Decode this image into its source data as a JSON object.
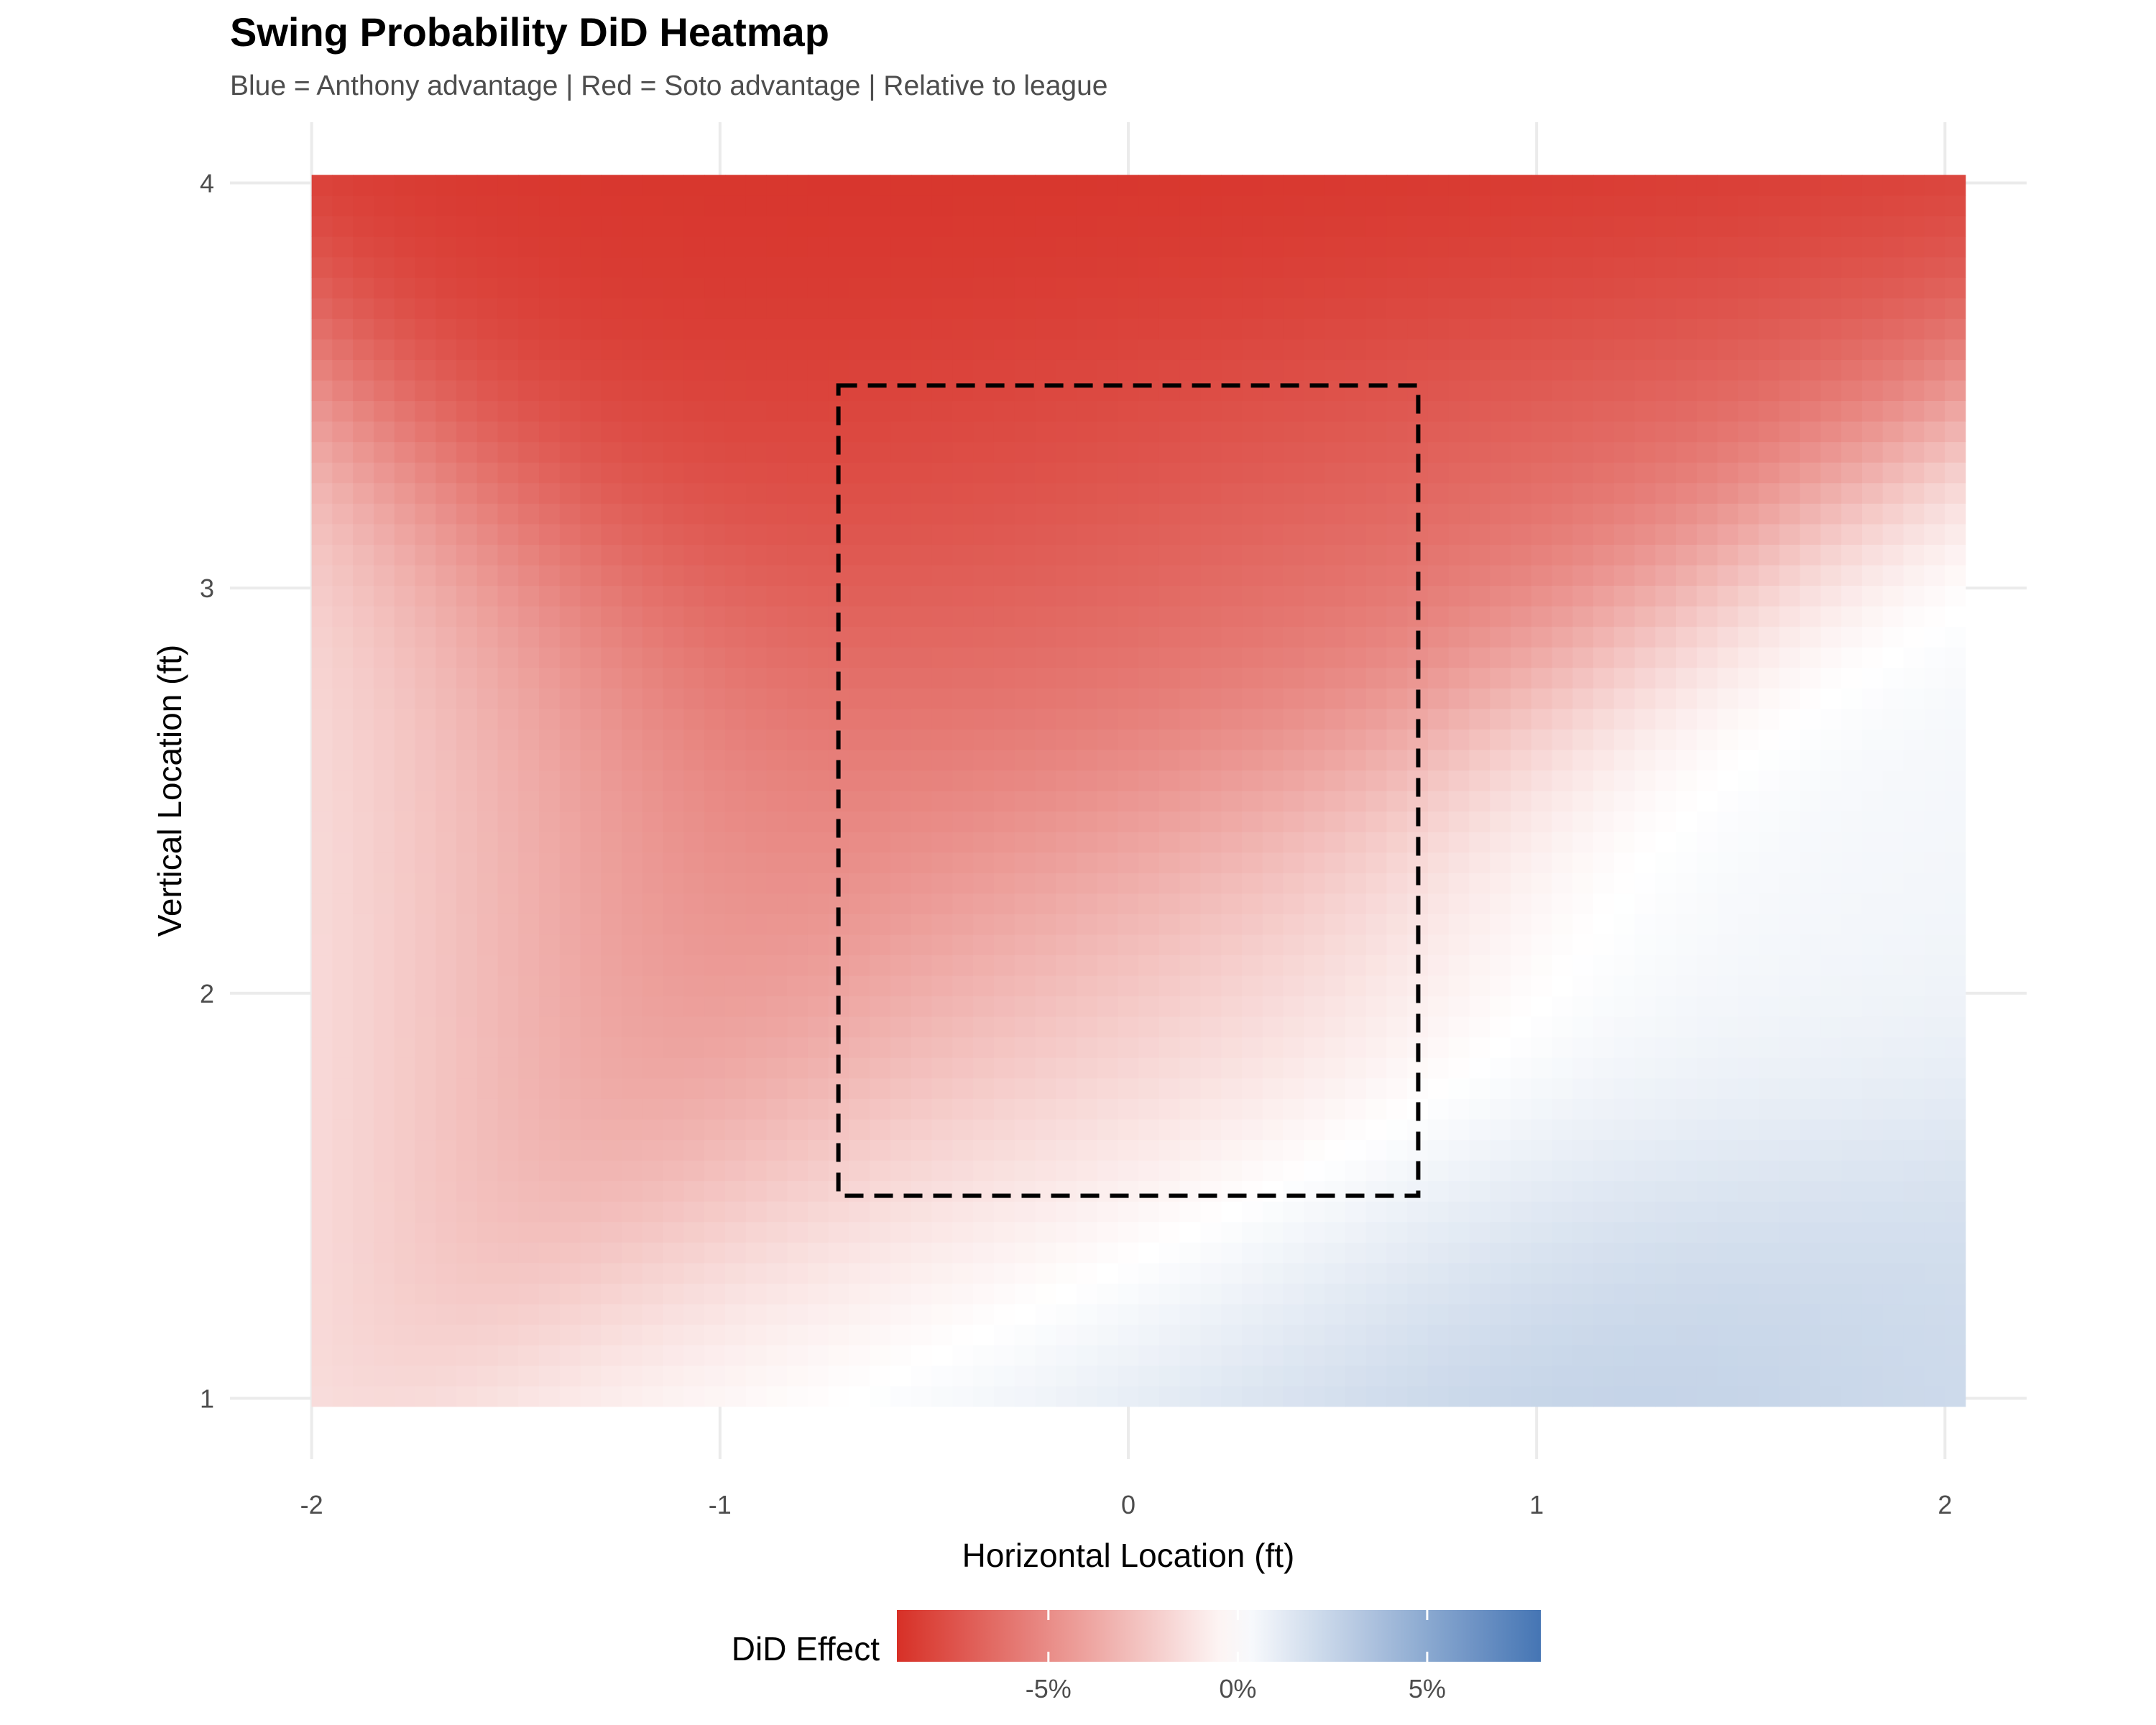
{
  "chart_data": {
    "type": "heatmap",
    "title": "Swing Probability DiD Heatmap",
    "subtitle": "Blue = Anthony advantage | Red = Soto advantage | Relative to league",
    "xlabel": "Horizontal Location (ft)",
    "ylabel": "Vertical Location (ft)",
    "xlim": [
      -2.2,
      2.2
    ],
    "ylim": [
      0.85,
      4.15
    ],
    "x_range": [
      -2.0,
      2.05
    ],
    "y_range": [
      0.98,
      4.02
    ],
    "x_ticks": [
      -2,
      -1,
      0,
      1,
      2
    ],
    "x_tick_labels": [
      "-2",
      "-1",
      "0",
      "1",
      "2"
    ],
    "y_ticks": [
      1,
      2,
      3,
      4
    ],
    "y_tick_labels": [
      "1",
      "2",
      "3",
      "4"
    ],
    "grid": true,
    "strike_zone": {
      "x": [
        -0.71,
        0.71
      ],
      "y": [
        1.5,
        3.5
      ],
      "style": "dashed"
    },
    "fill_scale": {
      "min": -0.09,
      "max": 0.08,
      "low_color": "#d73027",
      "mid_color": "#ffffff",
      "high_color": "#4575b4",
      "midpoint": 0
    },
    "sample_values": [
      {
        "x": -0.25,
        "y": 3.7,
        "did": -0.09
      },
      {
        "x": -0.6,
        "y": 3.3,
        "did": -0.085
      },
      {
        "x": 0.0,
        "y": 3.0,
        "did": -0.055
      },
      {
        "x": -1.0,
        "y": 2.5,
        "did": -0.06
      },
      {
        "x": 0.0,
        "y": 2.0,
        "did": -0.03
      },
      {
        "x": -2.0,
        "y": 2.5,
        "did": -0.005
      },
      {
        "x": 0.3,
        "y": 1.4,
        "did": 0.0
      },
      {
        "x": 1.3,
        "y": 2.0,
        "did": 0.005
      },
      {
        "x": 0.9,
        "y": 1.05,
        "did": 0.035
      },
      {
        "x": 2.0,
        "y": 1.0,
        "did": 0.02
      }
    ],
    "legend": {
      "title": "DiD Effect",
      "position": "bottom",
      "tick_values": [
        -0.05,
        0.0,
        0.05
      ],
      "tick_labels": [
        "-5%",
        "0%",
        "5%"
      ]
    }
  }
}
